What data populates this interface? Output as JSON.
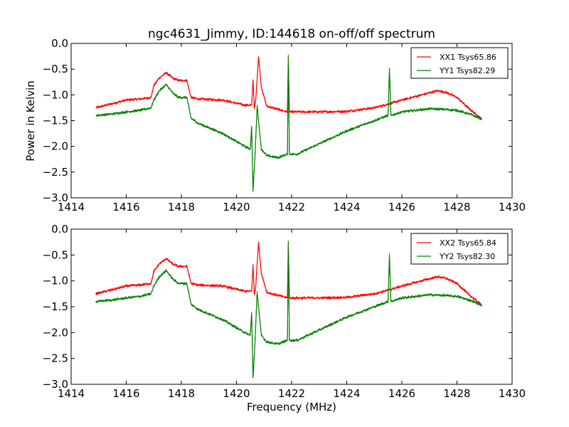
{
  "chart_data": {
    "type": "line",
    "title": "ngc4631_Jimmy, ID:144618 on-off/off spectrum",
    "xlabel": "Frequency (MHz)",
    "ylabel": "Power in Kelvin",
    "colors": {
      "red": "#ff0000",
      "green": "#008000"
    },
    "panels": [
      {
        "xlim": [
          1414,
          1430
        ],
        "ylim": [
          -3.0,
          0.0
        ],
        "xticks": [
          "1414",
          "1416",
          "1418",
          "1420",
          "1422",
          "1424",
          "1426",
          "1428",
          "1430"
        ],
        "yticks": [
          "0.0",
          "−0.5",
          "−1.0",
          "−1.5",
          "−2.0",
          "−2.5",
          "−3.0"
        ],
        "ylabel_shown": true,
        "legend_position": "top-right",
        "series": [
          {
            "name": "XX1 Tsys65.86",
            "color": "#ff0000",
            "x": [
              1414.9,
              1415.5,
              1416.0,
              1416.5,
              1416.9,
              1417.0,
              1417.2,
              1417.45,
              1417.7,
              1417.9,
              1418.2,
              1418.35,
              1418.6,
              1419.5,
              1420.3,
              1420.55,
              1420.6,
              1420.65,
              1420.7,
              1420.8,
              1420.9,
              1421.1,
              1421.5,
              1421.85,
              1421.88,
              1421.92,
              1422.2,
              1423.0,
              1424.0,
              1425.0,
              1425.5,
              1426.0,
              1426.5,
              1427.0,
              1427.3,
              1427.6,
              1428.0,
              1428.4,
              1428.9
            ],
            "y": [
              -1.25,
              -1.17,
              -1.1,
              -1.08,
              -1.05,
              -0.82,
              -0.67,
              -0.57,
              -0.68,
              -0.72,
              -0.72,
              -1.05,
              -1.08,
              -1.1,
              -1.2,
              -1.2,
              -0.7,
              -1.28,
              -1.1,
              -0.25,
              -0.85,
              -1.22,
              -1.28,
              -1.33,
              -0.25,
              -1.33,
              -1.33,
              -1.33,
              -1.32,
              -1.25,
              -1.18,
              -1.1,
              -1.03,
              -0.96,
              -0.92,
              -0.95,
              -1.05,
              -1.25,
              -1.47
            ]
          },
          {
            "name": "YY1 Tsys82.29",
            "color": "#008000",
            "x": [
              1414.9,
              1415.5,
              1416.0,
              1416.5,
              1416.9,
              1417.0,
              1417.2,
              1417.45,
              1417.7,
              1417.9,
              1418.2,
              1418.35,
              1418.6,
              1419.5,
              1420.3,
              1420.5,
              1420.55,
              1420.6,
              1420.68,
              1420.75,
              1420.8,
              1420.9,
              1421.1,
              1421.5,
              1421.85,
              1421.88,
              1421.92,
              1422.2,
              1423.0,
              1424.0,
              1425.0,
              1425.5,
              1425.55,
              1425.6,
              1426.0,
              1426.5,
              1427.0,
              1427.5,
              1428.0,
              1428.5,
              1428.9
            ],
            "y": [
              -1.4,
              -1.37,
              -1.33,
              -1.3,
              -1.25,
              -1.1,
              -0.92,
              -0.8,
              -0.97,
              -1.05,
              -1.05,
              -1.45,
              -1.55,
              -1.75,
              -2.0,
              -2.05,
              -1.6,
              -2.88,
              -2.1,
              -1.2,
              -1.5,
              -2.05,
              -2.18,
              -2.22,
              -2.15,
              -0.22,
              -2.15,
              -2.15,
              -1.95,
              -1.7,
              -1.5,
              -1.4,
              -0.47,
              -1.4,
              -1.33,
              -1.3,
              -1.27,
              -1.28,
              -1.3,
              -1.38,
              -1.47
            ]
          }
        ]
      },
      {
        "xlim": [
          1414,
          1430
        ],
        "ylim": [
          -3.0,
          0.0
        ],
        "xticks": [
          "1414",
          "1416",
          "1418",
          "1420",
          "1422",
          "1424",
          "1426",
          "1428",
          "1430"
        ],
        "yticks": [
          "0.0",
          "−0.5",
          "−1.0",
          "−1.5",
          "−2.0",
          "−2.5",
          "−3.0"
        ],
        "ylabel_shown": false,
        "xlabel_shown": true,
        "legend_position": "top-right",
        "series": [
          {
            "name": "XX2 Tsys65.84",
            "color": "#ff0000",
            "x": [
              1414.9,
              1415.5,
              1416.0,
              1416.5,
              1416.9,
              1417.0,
              1417.2,
              1417.45,
              1417.7,
              1417.9,
              1418.2,
              1418.35,
              1418.6,
              1419.5,
              1420.3,
              1420.55,
              1420.6,
              1420.65,
              1420.7,
              1420.8,
              1420.9,
              1421.1,
              1421.5,
              1421.85,
              1421.88,
              1421.92,
              1422.2,
              1423.0,
              1424.0,
              1425.0,
              1425.5,
              1426.0,
              1426.5,
              1427.0,
              1427.3,
              1427.6,
              1428.0,
              1428.4,
              1428.9
            ],
            "y": [
              -1.25,
              -1.17,
              -1.1,
              -1.08,
              -1.05,
              -0.82,
              -0.67,
              -0.57,
              -0.68,
              -0.72,
              -0.72,
              -1.05,
              -1.08,
              -1.1,
              -1.2,
              -1.2,
              -0.7,
              -1.28,
              -1.1,
              -0.25,
              -0.85,
              -1.22,
              -1.28,
              -1.33,
              -0.25,
              -1.33,
              -1.33,
              -1.33,
              -1.32,
              -1.25,
              -1.18,
              -1.1,
              -1.03,
              -0.96,
              -0.92,
              -0.95,
              -1.05,
              -1.25,
              -1.47
            ]
          },
          {
            "name": "YY2 Tsys82.30",
            "color": "#008000",
            "x": [
              1414.9,
              1415.5,
              1416.0,
              1416.5,
              1416.9,
              1417.0,
              1417.2,
              1417.45,
              1417.7,
              1417.9,
              1418.2,
              1418.35,
              1418.6,
              1419.5,
              1420.3,
              1420.5,
              1420.55,
              1420.6,
              1420.68,
              1420.75,
              1420.8,
              1420.9,
              1421.1,
              1421.5,
              1421.85,
              1421.88,
              1421.92,
              1422.2,
              1423.0,
              1424.0,
              1425.0,
              1425.5,
              1425.55,
              1425.6,
              1426.0,
              1426.5,
              1427.0,
              1427.5,
              1428.0,
              1428.5,
              1428.9
            ],
            "y": [
              -1.4,
              -1.37,
              -1.33,
              -1.3,
              -1.25,
              -1.1,
              -0.92,
              -0.8,
              -0.97,
              -1.05,
              -1.05,
              -1.45,
              -1.55,
              -1.75,
              -2.0,
              -2.05,
              -1.6,
              -2.88,
              -2.1,
              -1.2,
              -1.5,
              -2.05,
              -2.18,
              -2.22,
              -2.15,
              -0.22,
              -2.15,
              -2.15,
              -1.95,
              -1.7,
              -1.5,
              -1.4,
              -0.47,
              -1.4,
              -1.33,
              -1.3,
              -1.27,
              -1.28,
              -1.3,
              -1.38,
              -1.47
            ]
          }
        ]
      }
    ]
  }
}
